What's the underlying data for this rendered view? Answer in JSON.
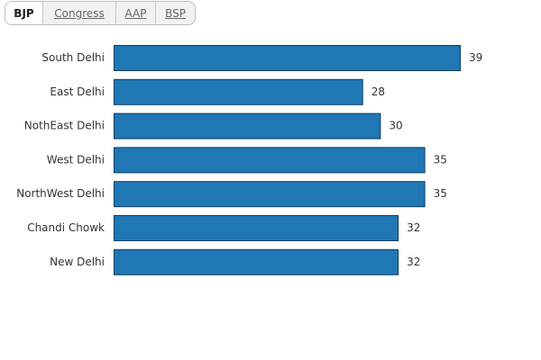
{
  "tabs": [
    {
      "label": "BJP",
      "active": true
    },
    {
      "label": "Congress",
      "active": false
    },
    {
      "label": "AAP",
      "active": false
    },
    {
      "label": "BSP",
      "active": false
    }
  ],
  "chart_data": {
    "type": "bar",
    "orientation": "horizontal",
    "title": "",
    "xlabel": "",
    "ylabel": "",
    "categories": [
      "South Delhi",
      "East Delhi",
      "NothEast Delhi",
      "West Delhi",
      "NorthWest Delhi",
      "Chandi Chowk",
      "New Delhi"
    ],
    "values": [
      39,
      28,
      30,
      35,
      35,
      32,
      32
    ],
    "xlim": [
      0,
      39
    ],
    "grid": false,
    "data_labels": true,
    "color": "#1f77b4"
  }
}
